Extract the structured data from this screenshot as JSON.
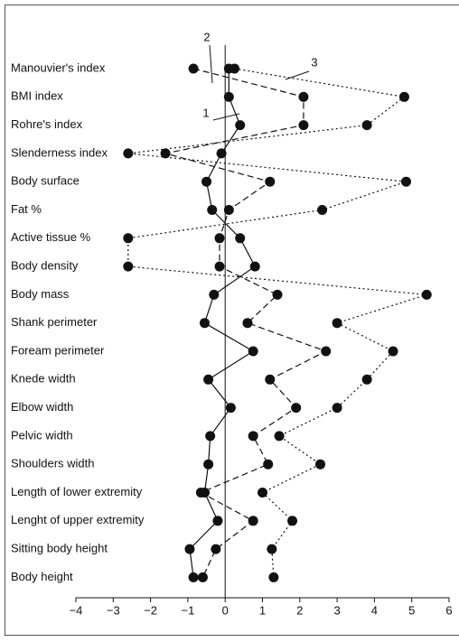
{
  "chart_data": {
    "type": "profile",
    "categories": [
      "Manouvier's index",
      "BMI index",
      "Rohre's index",
      "Slenderness index",
      "Body surface",
      "Fat %",
      "Active tissue %",
      "Body density",
      "Body mass",
      "Shank perimeter",
      "Foream perimeter",
      "Knede width",
      "Elbow width",
      "Pelvic width",
      "Shoulders width",
      "Length of lower extremity",
      "Lenght of upper extremity",
      "Sitting body height",
      "Body height"
    ],
    "series": [
      {
        "name": "1",
        "color": "#111",
        "dash": "solid",
        "values": [
          0.1,
          0.1,
          0.4,
          -0.1,
          -0.5,
          -0.35,
          0.4,
          0.8,
          -0.3,
          -0.55,
          0.75,
          -0.45,
          0.15,
          -0.4,
          -0.45,
          -0.55,
          -0.2,
          -0.95,
          -0.85
        ]
      },
      {
        "name": "2",
        "color": "#111",
        "dash": "dashed",
        "values": [
          -0.85,
          2.1,
          2.1,
          -1.6,
          1.2,
          0.1,
          -0.15,
          -0.15,
          1.4,
          0.6,
          2.7,
          1.2,
          1.9,
          0.75,
          1.15,
          -0.65,
          0.75,
          -0.25,
          -0.6
        ]
      },
      {
        "name": "3",
        "color": "#111",
        "dash": "dotted",
        "values": [
          0.25,
          4.8,
          3.8,
          -2.6,
          4.85,
          2.6,
          -2.6,
          -2.6,
          5.4,
          3.0,
          4.5,
          3.8,
          3.0,
          1.45,
          2.55,
          1.0,
          1.8,
          1.25,
          1.3
        ]
      }
    ],
    "xlim": [
      -4,
      6
    ],
    "xticks": [
      {
        "value": -4,
        "label": "−4"
      },
      {
        "value": -3,
        "label": "−3"
      },
      {
        "value": -2,
        "label": "−2"
      },
      {
        "value": -1,
        "label": "−1"
      },
      0,
      1,
      2,
      3,
      4,
      5,
      6
    ]
  }
}
